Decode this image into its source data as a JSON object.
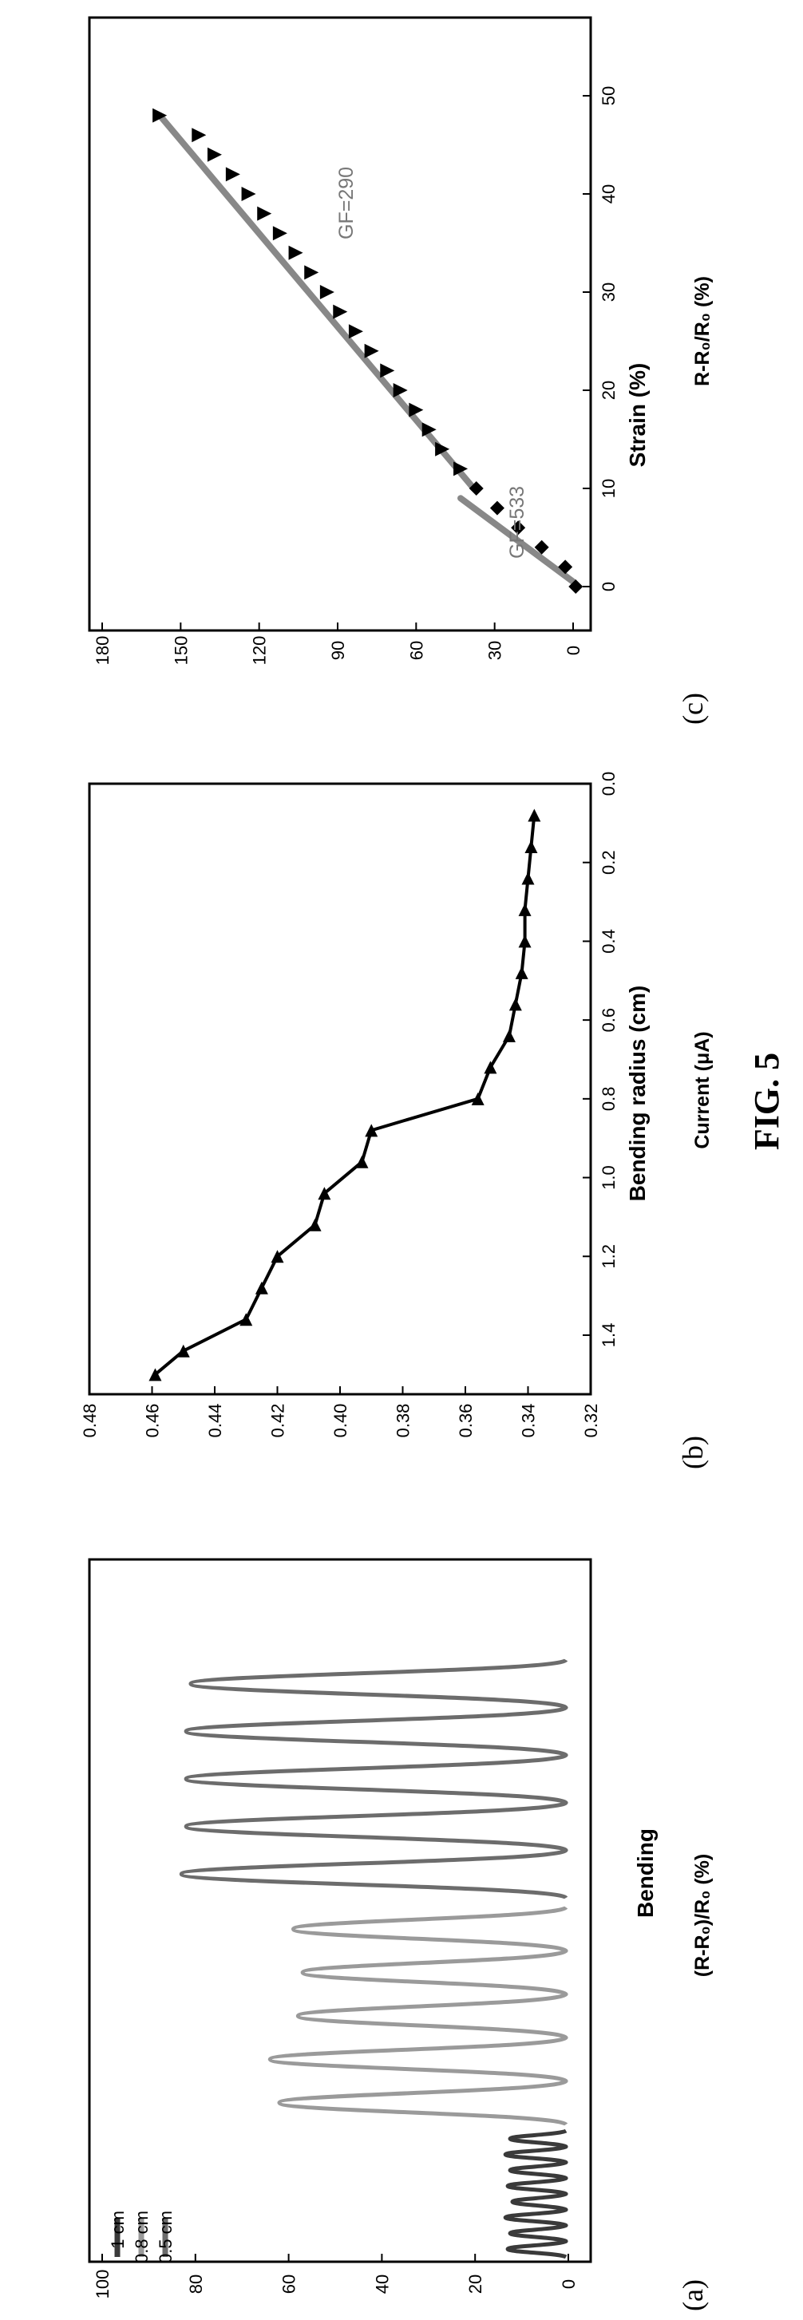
{
  "figure_caption": "FIG. 5",
  "chart_data": [
    {
      "panel": "(a)",
      "type": "line",
      "xlabel": "",
      "ylabel": "(R-R₀)/R₀ (%)",
      "ylim": [
        0,
        100
      ],
      "yticks": [
        "0",
        "20",
        "40",
        "60",
        "80",
        "100"
      ],
      "annotation": "Bending",
      "legend_position": "top-left",
      "series": [
        {
          "name": "1 cm",
          "color": "#3a3a3a",
          "peaks": [
            13,
            12.5,
            13.5,
            12,
            13,
            12.5,
            13.5,
            12.5
          ]
        },
        {
          "name": "0.8 cm",
          "color": "#9a9a9a",
          "peaks": [
            62,
            64,
            58,
            57,
            59
          ]
        },
        {
          "name": "0.5 cm",
          "color": "#6c6c6c",
          "peaks": [
            83,
            82,
            82,
            82,
            81
          ]
        }
      ]
    },
    {
      "panel": "(b)",
      "type": "line",
      "xlabel": "Bending radius (cm)",
      "ylabel": "Current (μA)",
      "xlim": [
        1.55,
        0.0
      ],
      "ylim": [
        0.32,
        0.48
      ],
      "xticks": [
        "1.4",
        "1.2",
        "1.0",
        "0.8",
        "0.6",
        "0.4",
        "0.2",
        "0.0"
      ],
      "yticks": [
        "0.32",
        "0.34",
        "0.36",
        "0.38",
        "0.40",
        "0.42",
        "0.44",
        "0.46",
        "0.48"
      ],
      "x": [
        1.5,
        1.44,
        1.36,
        1.28,
        1.2,
        1.12,
        1.04,
        0.96,
        0.88,
        0.8,
        0.72,
        0.64,
        0.56,
        0.48,
        0.4,
        0.32,
        0.24,
        0.16,
        0.08
      ],
      "y": [
        0.459,
        0.45,
        0.43,
        0.425,
        0.42,
        0.408,
        0.405,
        0.393,
        0.39,
        0.356,
        0.352,
        0.346,
        0.344,
        0.342,
        0.341,
        0.341,
        0.34,
        0.339,
        0.338
      ]
    },
    {
      "panel": "(c)",
      "type": "scatter",
      "xlabel": "Strain (%)",
      "ylabel": "R-R₀/R₀ (%)",
      "xlim": [
        -2,
        52
      ],
      "ylim": [
        -5,
        180
      ],
      "xticks": [
        "0",
        "10",
        "20",
        "30",
        "40",
        "50"
      ],
      "yticks": [
        "0",
        "30",
        "60",
        "90",
        "120",
        "150",
        "180"
      ],
      "annotations": [
        "GF=533",
        "GF=290"
      ],
      "series": [
        {
          "marker": "diamond",
          "x": [
            0,
            2,
            4,
            6,
            8,
            10
          ],
          "y": [
            -1,
            3,
            12,
            21,
            29,
            37
          ]
        },
        {
          "marker": "triangle",
          "x": [
            12,
            14,
            16,
            18,
            20,
            22,
            24,
            26,
            28,
            30,
            32,
            34,
            36,
            38,
            40,
            42,
            44,
            46,
            48
          ],
          "y": [
            43,
            50,
            55,
            60,
            66,
            71,
            77,
            83,
            89,
            94,
            100,
            106,
            112,
            118,
            124,
            130,
            137,
            143,
            158
          ]
        }
      ],
      "fits": [
        {
          "label": "GF=533",
          "x": [
            0.5,
            9
          ],
          "y": [
            0,
            43
          ]
        },
        {
          "label": "GF=290",
          "x": [
            10,
            48
          ],
          "y": [
            38,
            158
          ]
        }
      ]
    }
  ]
}
